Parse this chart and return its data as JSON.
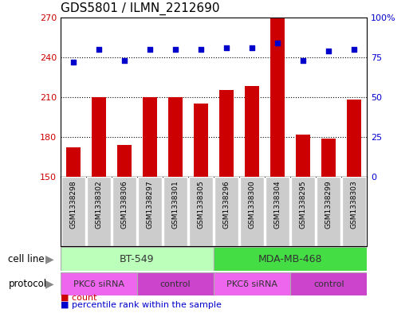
{
  "title": "GDS5801 / ILMN_2212690",
  "samples": [
    "GSM1338298",
    "GSM1338302",
    "GSM1338306",
    "GSM1338297",
    "GSM1338301",
    "GSM1338305",
    "GSM1338296",
    "GSM1338300",
    "GSM1338304",
    "GSM1338295",
    "GSM1338299",
    "GSM1338303"
  ],
  "counts": [
    172,
    210,
    174,
    210,
    210,
    205,
    215,
    218,
    269,
    182,
    179,
    208
  ],
  "percentiles": [
    72,
    80,
    73,
    80,
    80,
    80,
    81,
    81,
    84,
    73,
    79,
    80
  ],
  "ylim_left": [
    150,
    270
  ],
  "ylim_right": [
    0,
    100
  ],
  "yticks_left": [
    150,
    180,
    210,
    240,
    270
  ],
  "yticks_right": [
    0,
    25,
    50,
    75,
    100
  ],
  "bar_color": "#cc0000",
  "dot_color": "#0000cc",
  "grid_color": "#000000",
  "cell_line_groups": [
    {
      "label": "BT-549",
      "start": 0,
      "end": 5,
      "color": "#bbffbb"
    },
    {
      "label": "MDA-MB-468",
      "start": 6,
      "end": 11,
      "color": "#44dd44"
    }
  ],
  "protocol_groups": [
    {
      "label": "PKCδ siRNA",
      "start": 0,
      "end": 2,
      "color": "#ee66ee"
    },
    {
      "label": "control",
      "start": 3,
      "end": 5,
      "color": "#cc44cc"
    },
    {
      "label": "PKCδ siRNA",
      "start": 6,
      "end": 8,
      "color": "#ee66ee"
    },
    {
      "label": "control",
      "start": 9,
      "end": 11,
      "color": "#cc44cc"
    }
  ],
  "legend_count_label": "count",
  "legend_percentile_label": "percentile rank within the sample",
  "cell_line_row_label": "cell line",
  "protocol_row_label": "protocol",
  "background_color": "#ffffff",
  "sample_box_color": "#cccccc",
  "arrow_color": "#888888"
}
